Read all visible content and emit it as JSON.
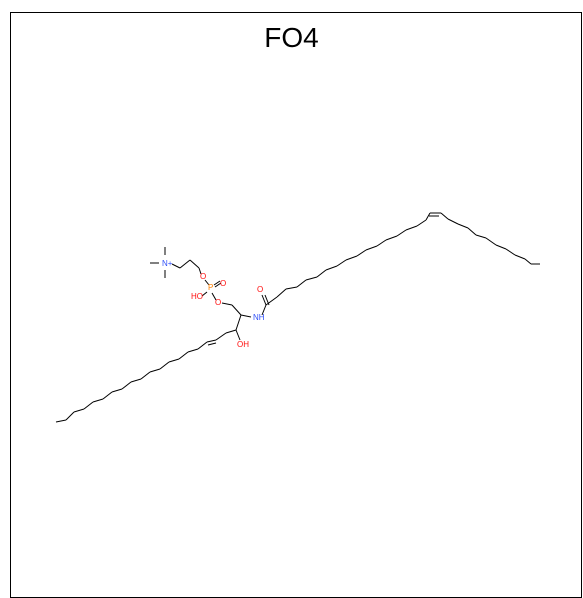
{
  "title": "FO4",
  "colors": {
    "frame": "#000000",
    "bond": "#000000",
    "oxygen": "#ff0d0d",
    "nitrogen": "#3050f8",
    "phosphorus": "#ff8000"
  },
  "atoms": {
    "nplus": "N+",
    "p": "P",
    "o_ester1": "O",
    "o_ester2": "O",
    "o_double_p": "O",
    "o_hydroxy_p": "HO",
    "o_amide": "O",
    "n_amide": "NH",
    "o_hydroxyl": "OH"
  }
}
